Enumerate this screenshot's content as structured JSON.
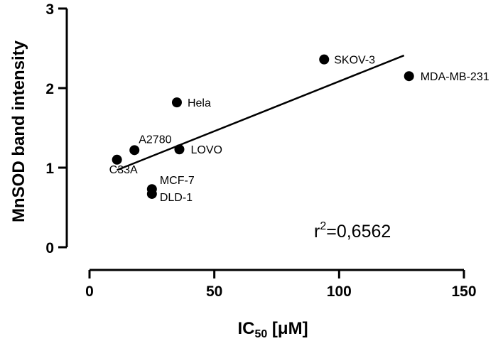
{
  "chart_data": {
    "type": "scatter",
    "title": "",
    "xlabel": {
      "main": "IC",
      "sub": "50",
      "units": " [μM]"
    },
    "ylabel": "MnSOD band intensity",
    "xlim": [
      0,
      150
    ],
    "ylim": [
      0,
      3
    ],
    "xticks": [
      0,
      50,
      100,
      150
    ],
    "yticks": [
      0,
      1,
      2,
      3
    ],
    "grid": false,
    "legend": "none",
    "series": [
      {
        "points": [
          {
            "label": "C33A",
            "x": 11,
            "y": 1.1
          },
          {
            "label": "A2780",
            "x": 18,
            "y": 1.22
          },
          {
            "label": "MCF-7",
            "x": 25,
            "y": 0.73
          },
          {
            "label": "DLD-1",
            "x": 25,
            "y": 0.67
          },
          {
            "label": "Hela",
            "x": 35,
            "y": 1.82
          },
          {
            "label": "LOVO",
            "x": 36,
            "y": 1.23
          },
          {
            "label": "SKOV-3",
            "x": 94,
            "y": 2.36
          },
          {
            "label": "MDA-MB-231",
            "x": 128,
            "y": 2.15
          }
        ]
      }
    ],
    "regression": {
      "x1": 11,
      "y1": 0.97,
      "x2": 126,
      "y2": 2.41
    },
    "annotation": {
      "base": "r",
      "sup": "2",
      "rest": "=0,6562"
    },
    "colors": {
      "points": "#000000",
      "line": "#000000"
    }
  }
}
